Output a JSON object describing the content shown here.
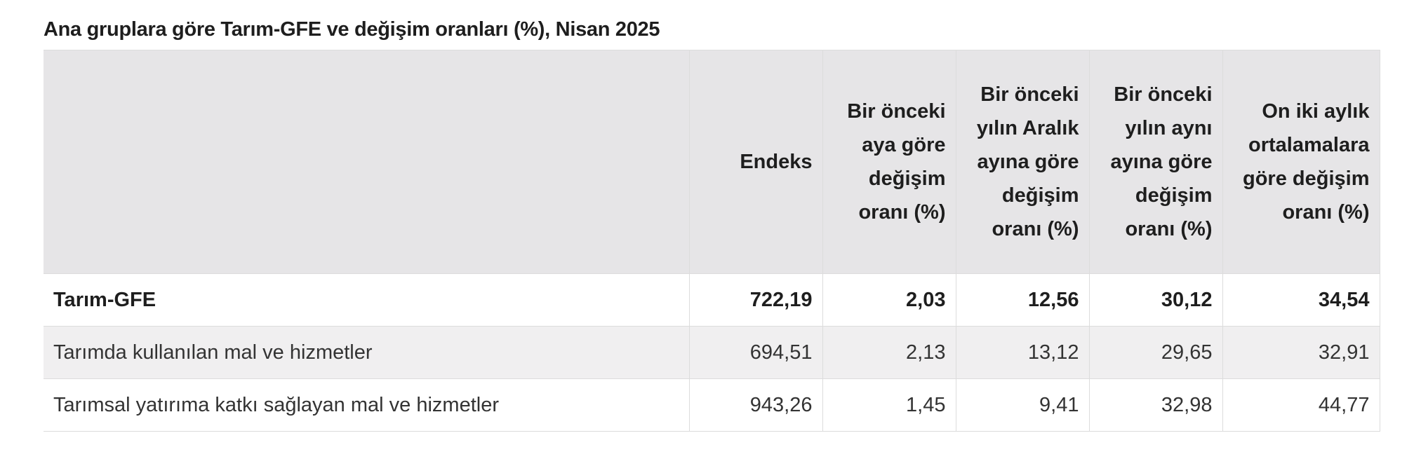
{
  "caption": "Ana gruplara göre Tarım-GFE ve değişim oranları (%), Nisan 2025",
  "table": {
    "headers": [
      "",
      "Endeks",
      "Bir önceki aya göre değişim oranı (%)",
      "Bir önceki yılın Aralık ayına göre değişim oranı (%)",
      "Bir önceki yılın aynı ayına göre değişim oranı (%)",
      "On iki aylık ortalamalara göre değişim oranı (%)"
    ],
    "rows": [
      {
        "label": "Tarım-GFE",
        "values": [
          "722,19",
          "2,03",
          "12,56",
          "30,12",
          "34,54"
        ]
      },
      {
        "label": "Tarımda kullanılan mal ve hizmetler",
        "values": [
          "694,51",
          "2,13",
          "13,12",
          "29,65",
          "32,91"
        ]
      },
      {
        "label": "Tarımsal yatırıma katkı sağlayan mal ve hizmetler",
        "values": [
          "943,26",
          "1,45",
          "9,41",
          "32,98",
          "44,77"
        ]
      }
    ]
  },
  "colors": {
    "header_bg": "#e6e5e7",
    "alt_row_bg": "#f0eff0",
    "border": "#dcdcdc"
  }
}
